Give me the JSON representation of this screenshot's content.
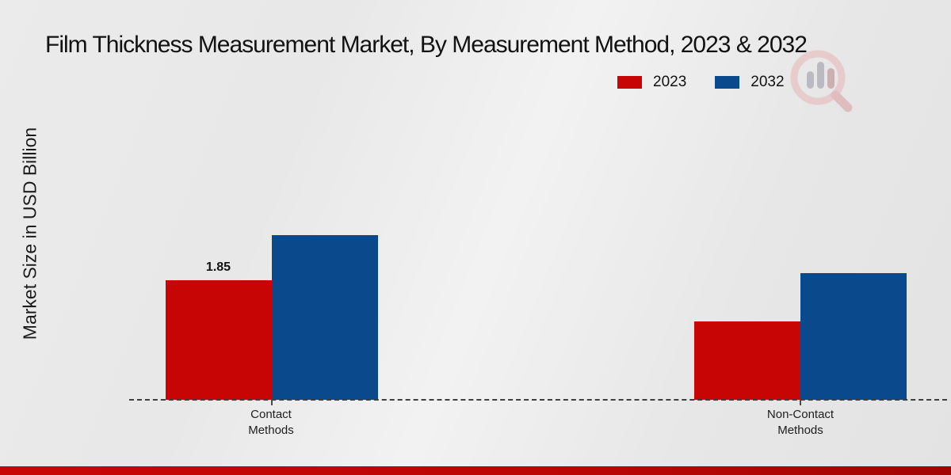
{
  "page": {
    "title": "Film Thickness Measurement Market, By Measurement Method, 2023 & 2032",
    "y_axis_label": "Market Size in USD Billion",
    "watermark_icon": "magnifier-bar-chart-logo"
  },
  "colors": {
    "series_2023": "#c80505",
    "series_2032": "#0a4a8c",
    "footer_bar": "#b90404",
    "baseline": "#3f3f3f"
  },
  "chart_data": {
    "type": "bar",
    "categories": [
      "Contact Methods",
      "Non-Contact Methods"
    ],
    "series": [
      {
        "name": "2023",
        "color": "#c80505",
        "values": [
          1.85,
          1.21
        ]
      },
      {
        "name": "2032",
        "color": "#0a4a8c",
        "values": [
          2.55,
          1.96
        ]
      }
    ],
    "value_labels": [
      {
        "series_index": 0,
        "category_index": 0,
        "text": "1.85"
      }
    ],
    "title": "Film Thickness Measurement Market, By Measurement Method, 2023 & 2032",
    "xlabel": "",
    "ylabel": "Market Size in USD Billion",
    "ylim": [
      0,
      3.2
    ],
    "grid": false,
    "legend_position": "top-right",
    "baseline_style": "dashed",
    "y_ticks_visible": false
  }
}
